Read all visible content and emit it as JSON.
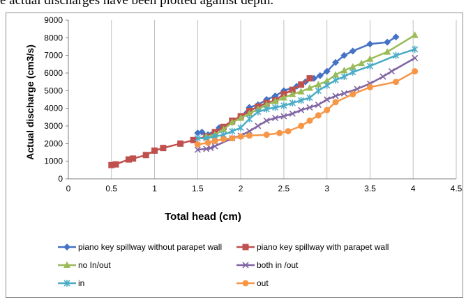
{
  "caption_fragment": "e actual discharges have been plotted against depth.",
  "chart_data": {
    "type": "line",
    "xlabel": "Total head  (cm)",
    "ylabel": "Actual discharge (cm3/s)",
    "xlim": [
      0,
      4.5
    ],
    "ylim": [
      0,
      9000
    ],
    "xticks": [
      "0",
      "0.5",
      "1",
      "1.5",
      "2",
      "2.5",
      "3",
      "3.5",
      "4",
      "4.5"
    ],
    "yticks": [
      "0",
      "1000",
      "2000",
      "3000",
      "4000",
      "5000",
      "6000",
      "7000",
      "8000",
      "9000"
    ],
    "grid": "vertical",
    "legend_position": "bottom",
    "series": [
      {
        "name": "piano key spillway without parapet wall",
        "color": "#4472C4",
        "marker": "diamond",
        "x": [
          1.5,
          1.55,
          1.62,
          1.75,
          1.9,
          2.0,
          2.1,
          2.2,
          2.3,
          2.4,
          2.5,
          2.65,
          2.75,
          2.85,
          2.92,
          3.0,
          3.1,
          3.2,
          3.3,
          3.5,
          3.7,
          3.8
        ],
        "y": [
          2600,
          2650,
          2500,
          2900,
          3200,
          3500,
          4050,
          4200,
          4500,
          4700,
          5000,
          5250,
          5500,
          5700,
          5850,
          6100,
          6600,
          7000,
          7250,
          7650,
          7750,
          8050
        ]
      },
      {
        "name": "piano key spillway with parapet wall",
        "color": "#C0504D",
        "marker": "square",
        "x": [
          0.5,
          0.55,
          0.7,
          0.75,
          0.9,
          1.0,
          1.1,
          1.3,
          1.45,
          1.6,
          1.7,
          1.8,
          1.9,
          2.0,
          2.1,
          2.2,
          2.3,
          2.4,
          2.5,
          2.6,
          2.7,
          2.8
        ],
        "y": [
          780,
          820,
          1100,
          1150,
          1350,
          1600,
          1750,
          2000,
          2200,
          2400,
          2650,
          2950,
          3300,
          3550,
          3850,
          4100,
          4300,
          4450,
          4800,
          5050,
          5350,
          5700
        ]
      },
      {
        "name": "no In/out",
        "color": "#9BBB59",
        "marker": "triangle",
        "x": [
          1.6,
          1.7,
          1.8,
          1.9,
          2.0,
          2.1,
          2.2,
          2.3,
          2.4,
          2.5,
          2.6,
          2.7,
          2.8,
          2.9,
          3.0,
          3.1,
          3.2,
          3.3,
          3.4,
          3.5,
          3.7,
          4.02
        ],
        "y": [
          2400,
          2500,
          2800,
          3200,
          3450,
          3700,
          3950,
          4200,
          4400,
          4600,
          4800,
          4950,
          5150,
          5350,
          5550,
          5900,
          6150,
          6350,
          6550,
          6800,
          7200,
          8150
        ]
      },
      {
        "name": "both in /out",
        "color": "#8064A2",
        "marker": "x",
        "x": [
          1.5,
          1.6,
          1.65,
          1.7,
          1.9,
          2.0,
          2.1,
          2.2,
          2.3,
          2.4,
          2.5,
          2.6,
          2.7,
          2.8,
          2.9,
          3.0,
          3.1,
          3.2,
          3.35,
          3.5,
          3.65,
          3.75,
          4.02
        ],
        "y": [
          1650,
          1700,
          1750,
          1850,
          2300,
          2450,
          2700,
          3000,
          3300,
          3450,
          3550,
          3700,
          3900,
          4050,
          4200,
          4500,
          4700,
          4850,
          5100,
          5400,
          5800,
          6100,
          6850
        ]
      },
      {
        "name": "in",
        "color": "#4BACC6",
        "marker": "asterisk",
        "x": [
          1.5,
          1.6,
          1.7,
          1.8,
          1.9,
          2.0,
          2.1,
          2.2,
          2.3,
          2.4,
          2.5,
          2.6,
          2.7,
          2.8,
          2.9,
          3.0,
          3.1,
          3.2,
          3.3,
          3.5,
          3.8,
          4.02
        ],
        "y": [
          2300,
          2300,
          2400,
          2500,
          2700,
          2900,
          3400,
          3800,
          3950,
          4050,
          4150,
          4300,
          4450,
          4600,
          5000,
          5300,
          5600,
          5800,
          6050,
          6400,
          7000,
          7350
        ]
      },
      {
        "name": "out",
        "color": "#F79646",
        "marker": "circle",
        "x": [
          1.5,
          1.62,
          1.7,
          1.8,
          1.9,
          2.0,
          2.1,
          2.3,
          2.45,
          2.55,
          2.7,
          2.8,
          2.9,
          3.0,
          3.1,
          3.3,
          3.5,
          3.8,
          4.02
        ],
        "y": [
          1950,
          2050,
          2150,
          2250,
          2300,
          2400,
          2450,
          2500,
          2600,
          2700,
          3000,
          3300,
          3600,
          3900,
          4350,
          4800,
          5200,
          5500,
          6100
        ]
      }
    ]
  }
}
